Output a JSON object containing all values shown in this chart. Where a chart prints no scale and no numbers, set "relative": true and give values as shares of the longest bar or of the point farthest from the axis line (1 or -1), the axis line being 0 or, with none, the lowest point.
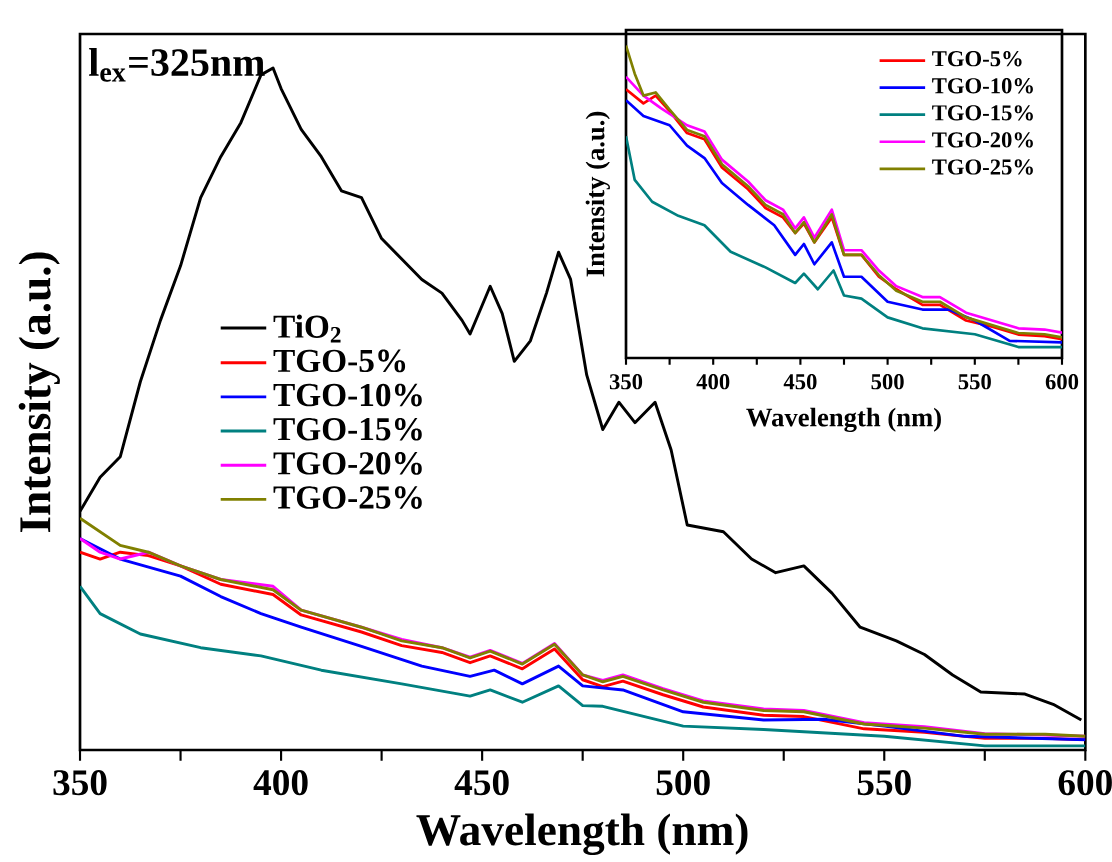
{
  "chart_data": [
    {
      "type": "line",
      "relative": true,
      "xlabel": "Wavelength (nm)",
      "ylabel": "Intensity (a.u.)",
      "xlim": [
        350,
        600
      ],
      "xticks": [
        350,
        400,
        450,
        500,
        550,
        600
      ],
      "legend": "left",
      "annotations": [
        "l$_{ex}$=325nm"
      ],
      "series": [
        {
          "name": "TiO$_{2}$",
          "color": "#000000",
          "x": [
            350,
            355,
            360,
            365,
            370,
            375,
            380,
            385,
            390,
            395,
            398,
            400,
            405,
            410,
            415,
            420,
            425,
            430,
            435,
            440,
            445,
            447,
            452,
            455,
            458,
            462,
            466,
            469,
            472,
            476,
            480,
            484,
            488,
            493,
            497,
            501,
            510,
            517,
            523,
            530,
            537,
            544,
            553,
            560,
            567,
            574,
            585,
            592,
            599
          ],
          "values": [
            0.35,
            0.4,
            0.43,
            0.54,
            0.63,
            0.71,
            0.81,
            0.87,
            0.92,
            0.99,
            1.0,
            0.97,
            0.91,
            0.87,
            0.82,
            0.81,
            0.75,
            0.72,
            0.69,
            0.67,
            0.63,
            0.61,
            0.68,
            0.64,
            0.57,
            0.6,
            0.67,
            0.73,
            0.69,
            0.55,
            0.47,
            0.51,
            0.48,
            0.51,
            0.44,
            0.33,
            0.32,
            0.28,
            0.26,
            0.27,
            0.23,
            0.18,
            0.16,
            0.14,
            0.11,
            0.085,
            0.082,
            0.067,
            0.044
          ]
        },
        {
          "name": "TGO-5%",
          "color": "#ff0000",
          "x": [
            350,
            355,
            360,
            367,
            375,
            385,
            398,
            405,
            420,
            430,
            440,
            447,
            452,
            460,
            468,
            475,
            480,
            485,
            495,
            505,
            520,
            530,
            545,
            560,
            575,
            590,
            600
          ],
          "values": [
            0.29,
            0.28,
            0.29,
            0.285,
            0.27,
            0.243,
            0.228,
            0.198,
            0.173,
            0.153,
            0.143,
            0.128,
            0.138,
            0.119,
            0.148,
            0.103,
            0.093,
            0.101,
            0.081,
            0.063,
            0.051,
            0.049,
            0.031,
            0.026,
            0.017,
            0.017,
            0.015
          ]
        },
        {
          "name": "TGO-10%",
          "color": "#0000ff",
          "x": [
            350,
            360,
            375,
            385,
            395,
            405,
            420,
            435,
            447,
            453,
            460,
            469,
            475,
            485,
            500,
            520,
            535,
            550,
            570,
            600
          ],
          "values": [
            0.31,
            0.28,
            0.255,
            0.225,
            0.2,
            0.18,
            0.152,
            0.123,
            0.108,
            0.117,
            0.097,
            0.123,
            0.094,
            0.088,
            0.056,
            0.044,
            0.045,
            0.035,
            0.02,
            0.015
          ]
        },
        {
          "name": "TGO-15%",
          "color": "#008080",
          "x": [
            350,
            355,
            365,
            380,
            395,
            410,
            430,
            447,
            452,
            460,
            469,
            475,
            480,
            500,
            520,
            550,
            575,
            600
          ],
          "values": [
            0.24,
            0.2,
            0.17,
            0.15,
            0.138,
            0.117,
            0.097,
            0.079,
            0.088,
            0.07,
            0.094,
            0.065,
            0.064,
            0.035,
            0.03,
            0.02,
            0.006,
            0.006
          ]
        },
        {
          "name": "TGO-20%",
          "color": "#ff00ff",
          "x": [
            350,
            355,
            360,
            367,
            375,
            385,
            398,
            405,
            420,
            430,
            440,
            447,
            452,
            460,
            468,
            475,
            480,
            485,
            495,
            505,
            520,
            530,
            545,
            560,
            575,
            590,
            600
          ],
          "values": [
            0.31,
            0.29,
            0.28,
            0.29,
            0.27,
            0.25,
            0.24,
            0.205,
            0.18,
            0.162,
            0.15,
            0.136,
            0.146,
            0.127,
            0.156,
            0.11,
            0.102,
            0.11,
            0.09,
            0.072,
            0.06,
            0.058,
            0.04,
            0.034,
            0.024,
            0.022,
            0.02
          ]
        },
        {
          "name": "TGO-25%",
          "color": "#808000",
          "x": [
            350,
            360,
            367,
            375,
            385,
            398,
            405,
            420,
            430,
            440,
            447,
            452,
            460,
            468,
            475,
            480,
            485,
            495,
            505,
            520,
            530,
            545,
            560,
            575,
            590,
            600
          ],
          "values": [
            0.34,
            0.3,
            0.29,
            0.27,
            0.25,
            0.235,
            0.205,
            0.18,
            0.16,
            0.15,
            0.135,
            0.145,
            0.126,
            0.155,
            0.11,
            0.1,
            0.108,
            0.088,
            0.07,
            0.058,
            0.056,
            0.038,
            0.032,
            0.023,
            0.023,
            0.02
          ]
        }
      ]
    },
    {
      "type": "line",
      "relative": true,
      "xlabel": "Wavelength (nm)",
      "ylabel": "Intensity (a.u.)",
      "xlim": [
        350,
        600
      ],
      "xticks": [
        350,
        400,
        450,
        500,
        550,
        600
      ],
      "legend": "top right",
      "series": [
        {
          "name": "TGO-5%",
          "color": "#ff0000",
          "x": [
            350,
            360,
            367,
            375,
            385,
            395,
            405,
            420,
            430,
            440,
            447,
            452,
            458,
            468,
            475,
            485,
            495,
            505,
            520,
            530,
            545,
            560,
            575,
            590,
            600
          ],
          "values": [
            0.86,
            0.815,
            0.84,
            0.79,
            0.72,
            0.7,
            0.61,
            0.54,
            0.48,
            0.45,
            0.4,
            0.43,
            0.37,
            0.45,
            0.33,
            0.33,
            0.26,
            0.22,
            0.17,
            0.17,
            0.12,
            0.1,
            0.075,
            0.07,
            0.06
          ]
        },
        {
          "name": "TGO-10%",
          "color": "#0000ff",
          "x": [
            350,
            360,
            375,
            385,
            395,
            405,
            420,
            435,
            447,
            452,
            458,
            468,
            475,
            485,
            500,
            520,
            535,
            550,
            570,
            600
          ],
          "values": [
            0.825,
            0.775,
            0.745,
            0.68,
            0.64,
            0.56,
            0.49,
            0.425,
            0.33,
            0.365,
            0.3,
            0.37,
            0.26,
            0.26,
            0.18,
            0.155,
            0.155,
            0.12,
            0.055,
            0.05
          ]
        },
        {
          "name": "TGO-15%",
          "color": "#008080",
          "x": [
            350,
            355,
            365,
            380,
            395,
            410,
            430,
            447,
            452,
            460,
            469,
            475,
            485,
            500,
            520,
            550,
            575,
            600
          ],
          "values": [
            0.71,
            0.57,
            0.5,
            0.455,
            0.425,
            0.34,
            0.29,
            0.24,
            0.27,
            0.22,
            0.28,
            0.2,
            0.19,
            0.13,
            0.095,
            0.076,
            0.035,
            0.035
          ]
        },
        {
          "name": "TGO-20%",
          "color": "#ff00ff",
          "x": [
            350,
            360,
            370,
            385,
            395,
            405,
            420,
            430,
            440,
            447,
            452,
            458,
            468,
            475,
            485,
            495,
            505,
            520,
            530,
            545,
            560,
            575,
            590,
            600
          ],
          "values": [
            0.9,
            0.84,
            0.8,
            0.745,
            0.725,
            0.635,
            0.565,
            0.505,
            0.475,
            0.415,
            0.45,
            0.385,
            0.475,
            0.345,
            0.345,
            0.28,
            0.23,
            0.195,
            0.195,
            0.145,
            0.12,
            0.095,
            0.091,
            0.081
          ]
        },
        {
          "name": "TGO-25%",
          "color": "#808000",
          "x": [
            350,
            355,
            360,
            367,
            375,
            385,
            395,
            405,
            420,
            430,
            440,
            447,
            452,
            458,
            468,
            475,
            485,
            495,
            505,
            520,
            530,
            545,
            560,
            575,
            590,
            600
          ],
          "values": [
            1.0,
            0.91,
            0.84,
            0.85,
            0.795,
            0.73,
            0.71,
            0.62,
            0.55,
            0.49,
            0.46,
            0.4,
            0.435,
            0.37,
            0.46,
            0.33,
            0.33,
            0.265,
            0.215,
            0.18,
            0.18,
            0.13,
            0.105,
            0.08,
            0.076,
            0.066
          ]
        }
      ]
    }
  ]
}
